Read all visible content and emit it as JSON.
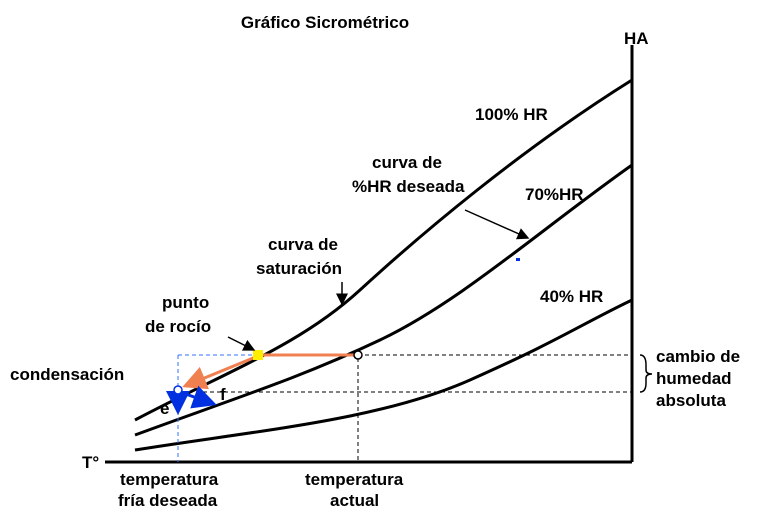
{
  "title": "Gráfico Sicrométrico",
  "axes": {
    "y": "HA",
    "x": "T°"
  },
  "curves": {
    "hr100": "100% HR",
    "hr70": "70%HR",
    "hr40": "40% HR"
  },
  "annotations": {
    "desired_curve": [
      "curva de",
      "%HR deseada"
    ],
    "saturation_curve": [
      "curva de",
      "saturación"
    ],
    "dew_point": [
      "punto",
      "de rocío"
    ],
    "condensation": "condensación",
    "e": "e",
    "f": "f",
    "humidity_change": [
      "cambio de",
      "humedad",
      "absoluta"
    ]
  },
  "x_labels": {
    "cold": [
      "temperatura",
      "fría deseada"
    ],
    "current": [
      "temperatura",
      "actual"
    ]
  }
}
